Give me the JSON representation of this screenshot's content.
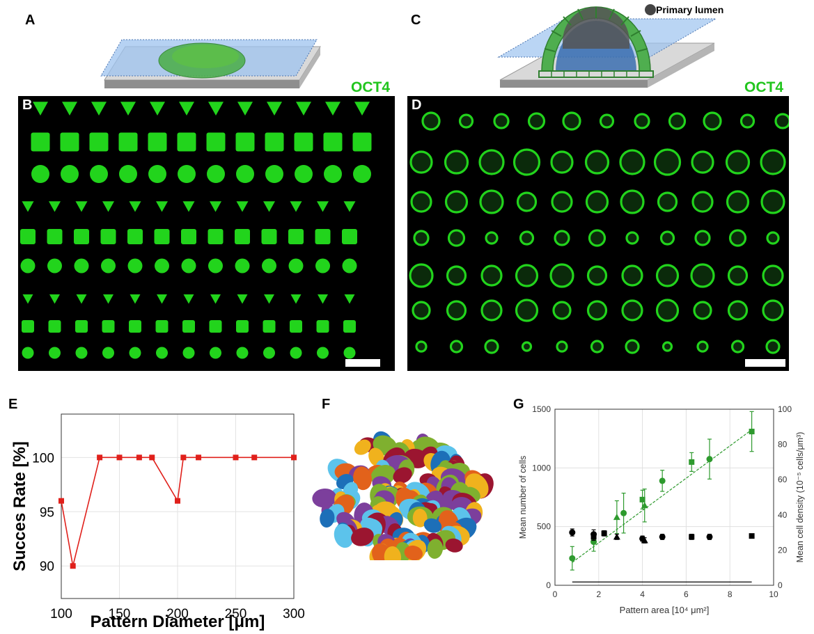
{
  "panels": {
    "A": "A",
    "B": "B",
    "C": "C",
    "D": "D",
    "E": "E",
    "F": "F",
    "G": "G"
  },
  "stain_label_left": "OCT4",
  "stain_label_right": "OCT4",
  "schematic_c_label": "Primary lumen",
  "colors": {
    "fluor_green": "#22d41c",
    "schematic_green": "#3aa83a",
    "schematic_blue": "#8fb8ea",
    "chart_e_red": "#e0201b",
    "chart_g_green": "#2e9a2e",
    "chart_g_black": "#000000"
  },
  "cell_palette": [
    "#e2621b",
    "#f0b21d",
    "#1d6fb8",
    "#7c3f9c",
    "#7fb02f",
    "#9b1530",
    "#5cc3eb"
  ],
  "chart_data": [
    {
      "id": "E",
      "type": "line",
      "title": "",
      "xlabel": "Pattern Diameter [μm]",
      "ylabel": "Succes Rate [%]",
      "xlim": [
        100,
        300
      ],
      "ylim": [
        87,
        104
      ],
      "xticks": [
        100,
        150,
        200,
        250,
        300
      ],
      "yticks": [
        90,
        95,
        100
      ],
      "grid": true,
      "series": [
        {
          "x": [
            100,
            110,
            133,
            150,
            167,
            178,
            200,
            205,
            218,
            250,
            266,
            300
          ],
          "y": [
            96,
            90,
            100,
            100,
            100,
            100,
            96,
            100,
            100,
            100,
            100,
            100
          ]
        }
      ]
    },
    {
      "id": "G",
      "type": "scatter",
      "title": "",
      "xlabel": "Pattern area [10⁴ μm²]",
      "ylabel_left": "Mean number of cells",
      "ylabel_right": "Mean cell density (10⁻⁵ cells/μm³)",
      "xlim": [
        0,
        10
      ],
      "ylim_left": [
        0,
        1500
      ],
      "ylim_right": [
        0,
        100
      ],
      "xticks": [
        0,
        2,
        4,
        6,
        8,
        10
      ],
      "yticks_left": [
        0,
        500,
        1000,
        1500
      ],
      "yticks_right": [
        0,
        20,
        40,
        60,
        80,
        100
      ],
      "grid": true,
      "series": [
        {
          "axis": "left",
          "color": "green",
          "x": [
            0.79,
            1.77,
            2.83,
            3.14,
            4.0,
            4.1,
            4.91,
            6.25,
            7.07,
            9.0
          ],
          "y": [
            230,
            370,
            580,
            615,
            730,
            680,
            890,
            1050,
            1075,
            1310
          ],
          "err": [
            100,
            80,
            140,
            170,
            80,
            140,
            90,
            80,
            170,
            170
          ],
          "markers": [
            "o",
            "o",
            "^",
            "o",
            "s",
            "^",
            "o",
            "s",
            "o",
            "s"
          ]
        },
        {
          "axis": "right",
          "color": "black",
          "x": [
            0.79,
            1.77,
            1.77,
            2.25,
            2.83,
            4.0,
            4.1,
            4.91,
            6.25,
            7.07,
            9.0
          ],
          "y": [
            30,
            29,
            27.5,
            29.5,
            27.5,
            26.5,
            25.5,
            27.5,
            27.5,
            27.5,
            28
          ],
          "err": [
            2,
            2.5,
            2,
            1.5,
            1.5,
            1.5,
            1.5,
            1.5,
            1.5,
            1.5,
            1
          ],
          "markers": [
            "o",
            "o",
            "s",
            "s",
            "^",
            "o",
            "^",
            "o",
            "s",
            "o",
            "s"
          ]
        }
      ],
      "fit_lines": [
        {
          "color": "green",
          "x": [
            0.79,
            9.0
          ],
          "y": [
            195,
            1325
          ]
        },
        {
          "color": "black",
          "x": [
            0.79,
            9.0
          ],
          "y": [
            28,
            28
          ]
        }
      ]
    }
  ]
}
